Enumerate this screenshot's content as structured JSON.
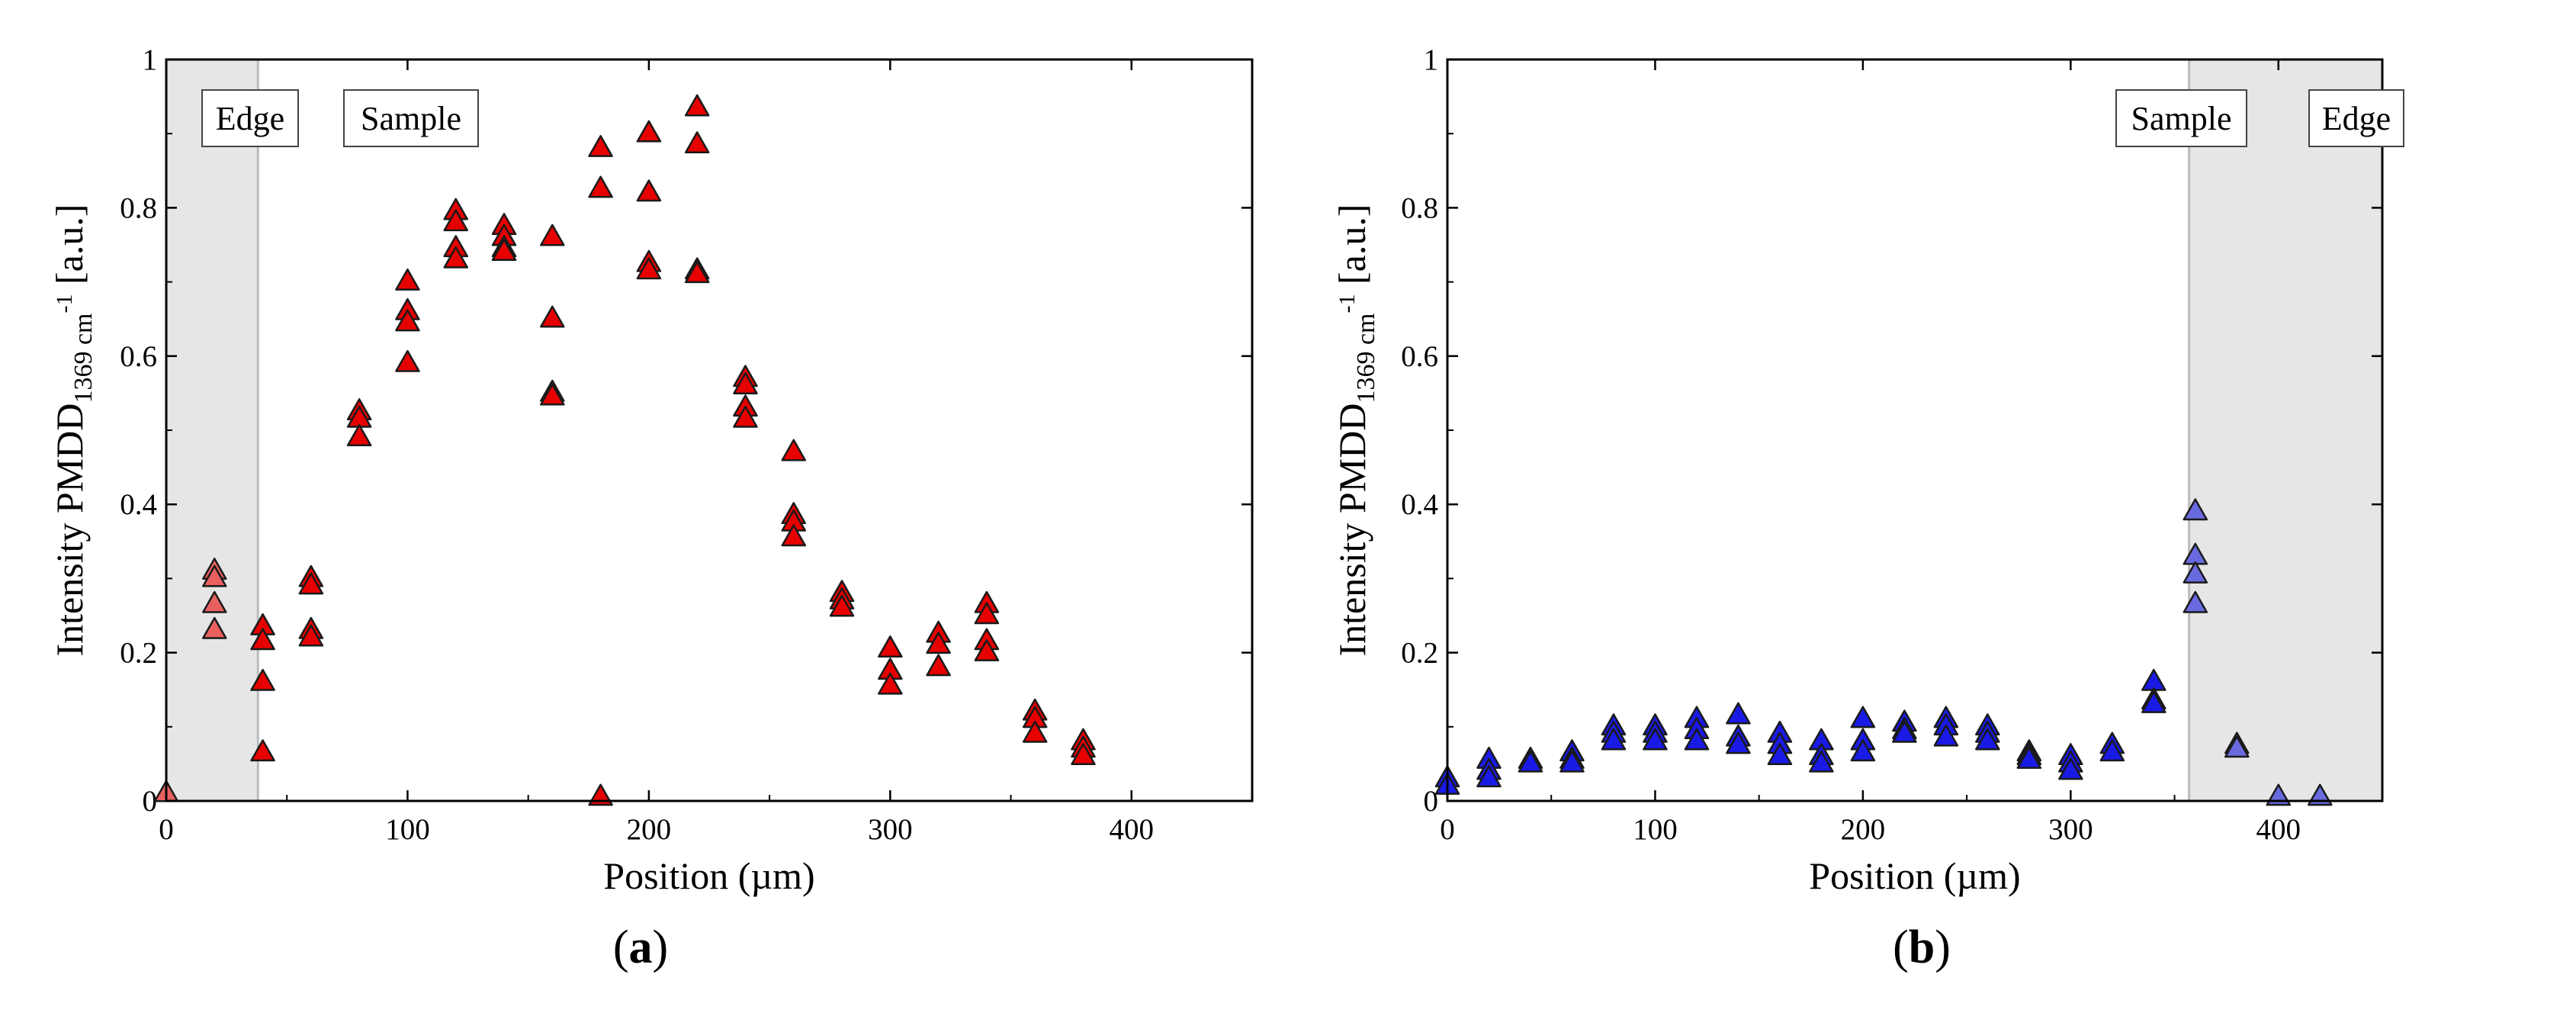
{
  "chart_data": [
    {
      "type": "scatter",
      "panel_label": "a",
      "xlabel": "Position (µm)",
      "ylabel": {
        "main": "Intensity PMDD",
        "sub": "1369 cm",
        "sup": "-1",
        "unit": " [a.u.]"
      },
      "xlim": [
        0,
        450
      ],
      "ylim": [
        0,
        1
      ],
      "xticks": [
        0,
        100,
        200,
        300,
        400
      ],
      "yticks": [
        0,
        0.2,
        0.4,
        0.6,
        0.8,
        1
      ],
      "ytick_labels": [
        "0",
        "0.2",
        "0.4",
        "0.6",
        "0.8",
        "1"
      ],
      "xtick_labels": [
        "0",
        "100",
        "200",
        "300",
        "400"
      ],
      "shaded_region": {
        "x": [
          0,
          38
        ],
        "label": "Edge"
      },
      "boundary": 38,
      "annotations": [
        "Edge",
        "Sample"
      ],
      "colors": {
        "sample": "#e60000",
        "edge": "#e86060",
        "stroke": "#1a1a1a",
        "shade": "#e6e6e6",
        "boundary": "#bbbbbb"
      },
      "points": [
        [
          0,
          0.01
        ],
        [
          20,
          0.31
        ],
        [
          20,
          0.3
        ],
        [
          20,
          0.265
        ],
        [
          20,
          0.23
        ],
        [
          40,
          0.235
        ],
        [
          40,
          0.215
        ],
        [
          40,
          0.16
        ],
        [
          40,
          0.065
        ],
        [
          60,
          0.3
        ],
        [
          60,
          0.29
        ],
        [
          60,
          0.23
        ],
        [
          60,
          0.22
        ],
        [
          80,
          0.525
        ],
        [
          80,
          0.515
        ],
        [
          80,
          0.49
        ],
        [
          100,
          0.7
        ],
        [
          100,
          0.66
        ],
        [
          100,
          0.645
        ],
        [
          100,
          0.59
        ],
        [
          120,
          0.795
        ],
        [
          120,
          0.78
        ],
        [
          120,
          0.745
        ],
        [
          120,
          0.73
        ],
        [
          140,
          0.775
        ],
        [
          140,
          0.76
        ],
        [
          140,
          0.745
        ],
        [
          140,
          0.74
        ],
        [
          160,
          0.76
        ],
        [
          160,
          0.65
        ],
        [
          160,
          0.55
        ],
        [
          160,
          0.545
        ],
        [
          180,
          0.88
        ],
        [
          180,
          0.825
        ],
        [
          180,
          0.005
        ],
        [
          200,
          0.9
        ],
        [
          200,
          0.82
        ],
        [
          200,
          0.725
        ],
        [
          200,
          0.715
        ],
        [
          220,
          0.935
        ],
        [
          220,
          0.885
        ],
        [
          220,
          0.715
        ],
        [
          220,
          0.71
        ],
        [
          240,
          0.57
        ],
        [
          240,
          0.56
        ],
        [
          240,
          0.53
        ],
        [
          240,
          0.515
        ],
        [
          260,
          0.47
        ],
        [
          260,
          0.385
        ],
        [
          260,
          0.375
        ],
        [
          260,
          0.355
        ],
        [
          280,
          0.28
        ],
        [
          280,
          0.27
        ],
        [
          280,
          0.26
        ],
        [
          300,
          0.205
        ],
        [
          300,
          0.175
        ],
        [
          300,
          0.155
        ],
        [
          320,
          0.225
        ],
        [
          320,
          0.21
        ],
        [
          320,
          0.18
        ],
        [
          340,
          0.265
        ],
        [
          340,
          0.25
        ],
        [
          340,
          0.215
        ],
        [
          340,
          0.2
        ],
        [
          360,
          0.12
        ],
        [
          360,
          0.11
        ],
        [
          360,
          0.09
        ],
        [
          380,
          0.08
        ],
        [
          380,
          0.07
        ],
        [
          380,
          0.06
        ]
      ]
    },
    {
      "type": "scatter",
      "panel_label": "b",
      "xlabel": "Position (µm)",
      "ylabel": {
        "main": "Intensity PMDD",
        "sub": "1369 cm",
        "sup": "-1",
        "unit": " [a.u.]"
      },
      "xlim": [
        0,
        450
      ],
      "ylim": [
        0,
        1
      ],
      "xticks": [
        0,
        100,
        200,
        300,
        400
      ],
      "yticks": [
        0,
        0.2,
        0.4,
        0.6,
        0.8,
        1
      ],
      "ytick_labels": [
        "0",
        "0.2",
        "0.4",
        "0.6",
        "0.8",
        "1"
      ],
      "xtick_labels": [
        "0",
        "100",
        "200",
        "300",
        "400"
      ],
      "shaded_region": {
        "x": [
          357,
          450
        ],
        "label": "Edge"
      },
      "boundary": 357,
      "annotations": [
        "Sample",
        "Edge"
      ],
      "colors": {
        "sample": "#1a1ae6",
        "edge": "#6a6ae0",
        "stroke": "#1a1a1a",
        "shade": "#e6e6e6",
        "boundary": "#bbbbbb"
      },
      "points": [
        [
          0,
          0.03
        ],
        [
          0,
          0.02
        ],
        [
          20,
          0.055
        ],
        [
          20,
          0.04
        ],
        [
          20,
          0.03
        ],
        [
          40,
          0.055
        ],
        [
          40,
          0.05
        ],
        [
          60,
          0.065
        ],
        [
          60,
          0.055
        ],
        [
          60,
          0.05
        ],
        [
          80,
          0.1
        ],
        [
          80,
          0.09
        ],
        [
          80,
          0.08
        ],
        [
          100,
          0.1
        ],
        [
          100,
          0.09
        ],
        [
          100,
          0.08
        ],
        [
          120,
          0.11
        ],
        [
          120,
          0.095
        ],
        [
          120,
          0.08
        ],
        [
          140,
          0.115
        ],
        [
          140,
          0.085
        ],
        [
          140,
          0.075
        ],
        [
          160,
          0.09
        ],
        [
          160,
          0.075
        ],
        [
          160,
          0.06
        ],
        [
          180,
          0.08
        ],
        [
          180,
          0.06
        ],
        [
          180,
          0.05
        ],
        [
          200,
          0.11
        ],
        [
          200,
          0.08
        ],
        [
          200,
          0.065
        ],
        [
          220,
          0.105
        ],
        [
          220,
          0.095
        ],
        [
          220,
          0.09
        ],
        [
          240,
          0.11
        ],
        [
          240,
          0.1
        ],
        [
          240,
          0.085
        ],
        [
          260,
          0.1
        ],
        [
          260,
          0.09
        ],
        [
          260,
          0.08
        ],
        [
          280,
          0.065
        ],
        [
          280,
          0.06
        ],
        [
          280,
          0.055
        ],
        [
          300,
          0.06
        ],
        [
          300,
          0.05
        ],
        [
          300,
          0.04
        ],
        [
          320,
          0.075
        ],
        [
          320,
          0.065
        ],
        [
          340,
          0.16
        ],
        [
          340,
          0.135
        ],
        [
          340,
          0.13
        ],
        [
          360,
          0.39
        ],
        [
          360,
          0.33
        ],
        [
          360,
          0.305
        ],
        [
          360,
          0.265
        ],
        [
          380,
          0.075
        ],
        [
          380,
          0.07
        ],
        [
          400,
          0.005
        ],
        [
          420,
          0.005
        ]
      ]
    }
  ]
}
